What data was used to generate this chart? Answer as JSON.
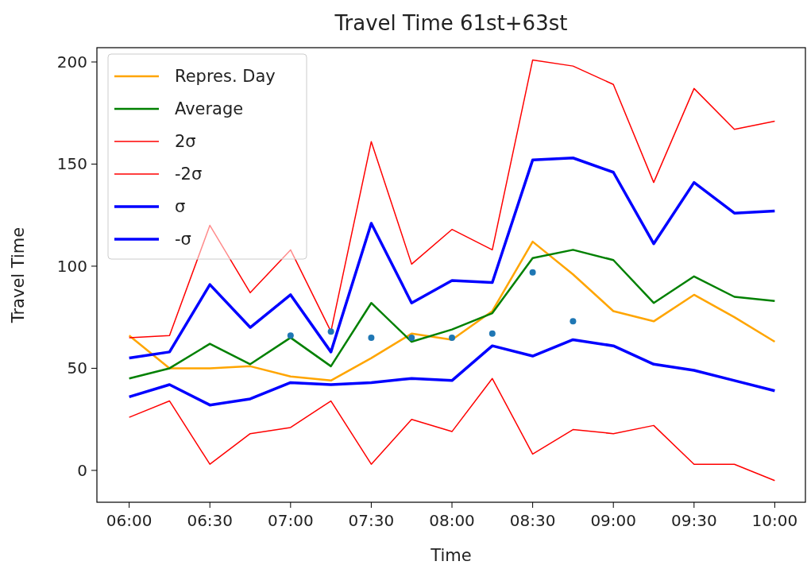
{
  "chart_data": {
    "type": "line",
    "title": "Travel Time 61st+63st",
    "xlabel": "Time",
    "ylabel": "Travel Time",
    "x": [
      6,
      6.25,
      6.5,
      6.75,
      7,
      7.25,
      7.5,
      7.75,
      8,
      8.25,
      8.5,
      8.75,
      9,
      9.25,
      9.5,
      9.75,
      10
    ],
    "xlim": [
      5.8,
      10.19
    ],
    "xticks": [
      {
        "value": 6,
        "label": "06:00"
      },
      {
        "value": 6.5,
        "label": "06:30"
      },
      {
        "value": 7,
        "label": "07:00"
      },
      {
        "value": 7.5,
        "label": "07:30"
      },
      {
        "value": 8,
        "label": "08:00"
      },
      {
        "value": 8.5,
        "label": "08:30"
      },
      {
        "value": 9,
        "label": "09:00"
      },
      {
        "value": 9.5,
        "label": "09:30"
      },
      {
        "value": 10,
        "label": "10:00"
      }
    ],
    "ylim": [
      -15.6,
      207
    ],
    "yticks": [
      0,
      50,
      100,
      150,
      200
    ],
    "legend": "top left",
    "grid": false,
    "series": [
      {
        "name": "Repres. Day",
        "color": "#ffa500",
        "values": [
          66,
          50,
          50,
          51,
          46,
          44,
          55,
          67,
          64,
          78,
          112,
          96,
          78,
          73,
          86,
          75,
          63
        ]
      },
      {
        "name": "Average",
        "color": "#008000",
        "values": [
          45,
          50,
          62,
          52,
          65,
          51,
          82,
          63,
          69,
          77,
          104,
          108,
          103,
          82,
          95,
          85,
          83
        ]
      },
      {
        "name": "2σ",
        "color": "#ff0000",
        "values": [
          65,
          66,
          120,
          87,
          108,
          68,
          161,
          101,
          118,
          108,
          201,
          198,
          189,
          141,
          187,
          167,
          171
        ]
      },
      {
        "name": "-2σ",
        "color": "#ff0000",
        "values": [
          26,
          34,
          3,
          18,
          21,
          34,
          3,
          25,
          19,
          45,
          8,
          20,
          18,
          22,
          3,
          3,
          -5
        ]
      },
      {
        "name": "σ",
        "color": "#0000ff",
        "values": [
          55,
          58,
          91,
          70,
          86,
          58,
          121,
          82,
          93,
          92,
          152,
          153,
          146,
          111,
          141,
          126,
          127
        ]
      },
      {
        "name": "-σ",
        "color": "#0000ff",
        "values": [
          36,
          42,
          32,
          35,
          43,
          42,
          43,
          45,
          44,
          61,
          56,
          64,
          61,
          52,
          49,
          44,
          39
        ]
      },
      {
        "type": "scatter",
        "marker": "circle",
        "color": "#1f77b4",
        "x": [
          7,
          7.25,
          7.5,
          7.75,
          8,
          8.25,
          8.5,
          8.75
        ],
        "values": [
          66,
          68,
          65,
          65,
          65,
          67,
          97,
          73
        ]
      }
    ]
  }
}
